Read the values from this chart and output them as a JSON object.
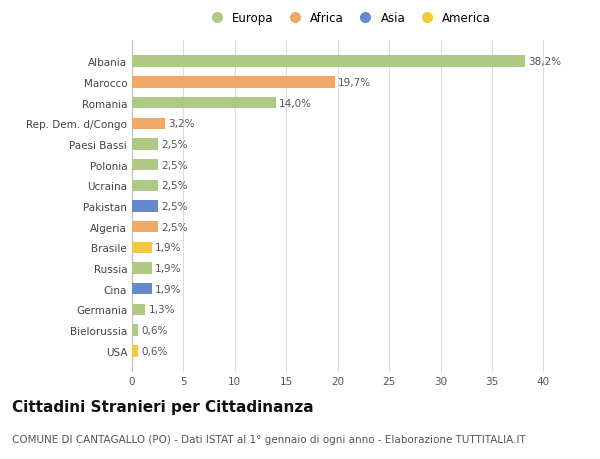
{
  "categories": [
    "Albania",
    "Marocco",
    "Romania",
    "Rep. Dem. d/Congo",
    "Paesi Bassi",
    "Polonia",
    "Ucraina",
    "Pakistan",
    "Algeria",
    "Brasile",
    "Russia",
    "Cina",
    "Germania",
    "Bielorussia",
    "USA"
  ],
  "values": [
    38.2,
    19.7,
    14.0,
    3.2,
    2.5,
    2.5,
    2.5,
    2.5,
    2.5,
    1.9,
    1.9,
    1.9,
    1.3,
    0.6,
    0.6
  ],
  "labels": [
    "38,2%",
    "19,7%",
    "14,0%",
    "3,2%",
    "2,5%",
    "2,5%",
    "2,5%",
    "2,5%",
    "2,5%",
    "1,9%",
    "1,9%",
    "1,9%",
    "1,3%",
    "0,6%",
    "0,6%"
  ],
  "colors": [
    "#aec984",
    "#f0a868",
    "#aec984",
    "#f0a868",
    "#aec984",
    "#aec984",
    "#aec984",
    "#6688cc",
    "#f0a868",
    "#f5c842",
    "#aec984",
    "#6688cc",
    "#aec984",
    "#aec984",
    "#f5c842"
  ],
  "legend_labels": [
    "Europa",
    "Africa",
    "Asia",
    "America"
  ],
  "legend_colors": [
    "#aec984",
    "#f0a868",
    "#6688cc",
    "#f5c842"
  ],
  "title": "Cittadini Stranieri per Cittadinanza",
  "subtitle": "COMUNE DI CANTAGALLO (PO) - Dati ISTAT al 1° gennaio di ogni anno - Elaborazione TUTTITALIA.IT",
  "xlim": [
    0,
    42
  ],
  "xticks": [
    0,
    5,
    10,
    15,
    20,
    25,
    30,
    35,
    40
  ],
  "background_color": "#ffffff",
  "grid_color": "#dddddd",
  "bar_height": 0.55,
  "title_fontsize": 11,
  "subtitle_fontsize": 7.5,
  "label_fontsize": 7.5,
  "tick_fontsize": 7.5,
  "legend_fontsize": 8.5
}
